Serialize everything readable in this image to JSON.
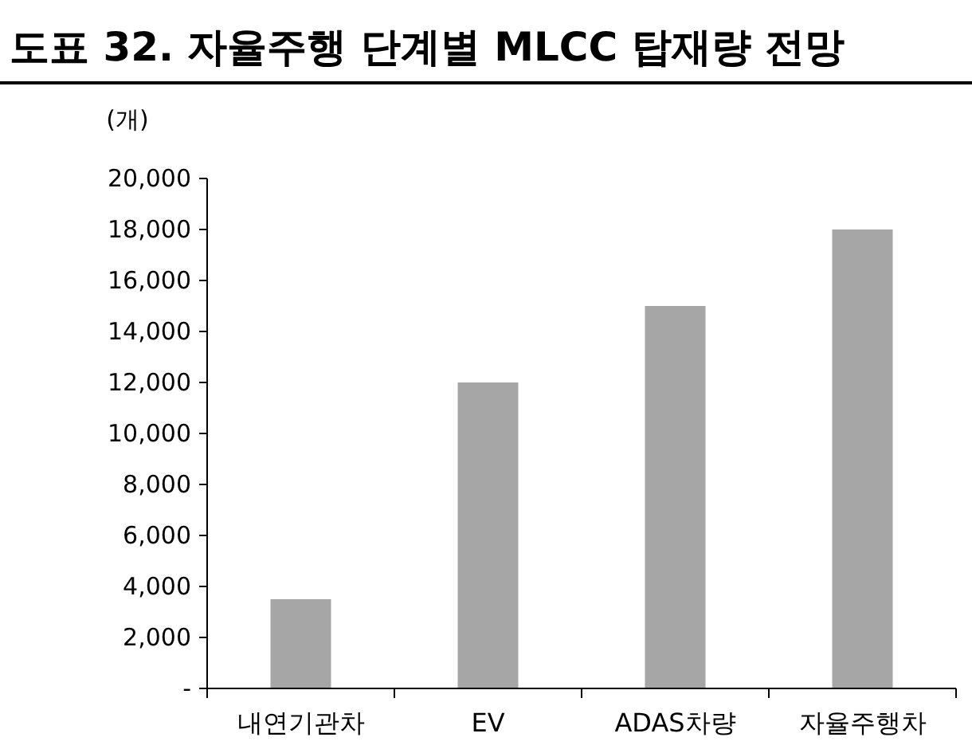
{
  "chart_data": {
    "type": "bar",
    "title": "도표 32. 자율주행 단계별 MLCC 탑재량 전망",
    "ylabel": "(개)",
    "categories": [
      "내연기관차",
      "EV",
      "ADAS차량",
      "자율주행차"
    ],
    "values": [
      3500,
      12000,
      15000,
      18000
    ],
    "color": "#a6a6a6",
    "ylim": [
      0,
      20000
    ],
    "yticks": [
      {
        "value": 0,
        "label": "-"
      },
      {
        "value": 2000,
        "label": "2,000"
      },
      {
        "value": 4000,
        "label": "4,000"
      },
      {
        "value": 6000,
        "label": "6,000"
      },
      {
        "value": 8000,
        "label": "8,000"
      },
      {
        "value": 10000,
        "label": "10,000"
      },
      {
        "value": 12000,
        "label": "12,000"
      },
      {
        "value": 14000,
        "label": "14,000"
      },
      {
        "value": 16000,
        "label": "16,000"
      },
      {
        "value": 18000,
        "label": "18,000"
      },
      {
        "value": 20000,
        "label": "20,000"
      }
    ],
    "grid": false,
    "legend": false
  }
}
